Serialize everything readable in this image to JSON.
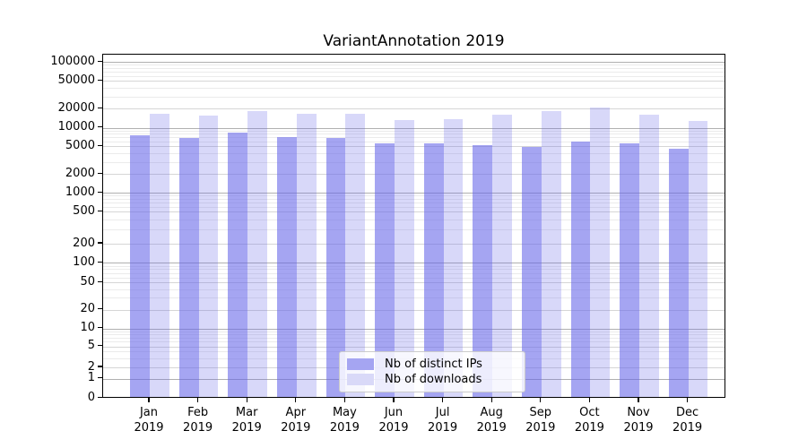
{
  "chart_data": {
    "type": "bar",
    "title": "VariantAnnotation 2019",
    "year": "2019",
    "categories": [
      "Jan",
      "Feb",
      "Mar",
      "Apr",
      "May",
      "Jun",
      "Jul",
      "Aug",
      "Sep",
      "Oct",
      "Nov",
      "Dec"
    ],
    "series": [
      {
        "name": "Nb of distinct IPs",
        "legend_swatch": "#a5a5f2",
        "fill": "rgba(100,100,233,0.58)",
        "values": [
          7200,
          6600,
          8000,
          6800,
          6500,
          5300,
          5300,
          4900,
          4700,
          5700,
          5400,
          4400
        ]
      },
      {
        "name": "Nb of downloads",
        "legend_swatch": "#d9d9f8",
        "fill": "rgba(100,100,233,0.25)",
        "values": [
          15700,
          14800,
          17700,
          16000,
          16100,
          12500,
          12900,
          15400,
          17600,
          19800,
          15300,
          12400
        ]
      }
    ],
    "y_ticks": [
      0,
      1,
      2,
      5,
      10,
      20,
      50,
      100,
      200,
      500,
      1000,
      2000,
      5000,
      10000,
      20000,
      50000,
      100000
    ],
    "ylim": [
      0,
      100000
    ],
    "yscale": "symlog",
    "grid": true,
    "legend_position": "bottom-center",
    "colors": {
      "grid_major": "#b0b0b0",
      "grid_labeled": "#d6d6d6",
      "grid_minor": "#ebebeb",
      "axis": "#000000"
    }
  }
}
